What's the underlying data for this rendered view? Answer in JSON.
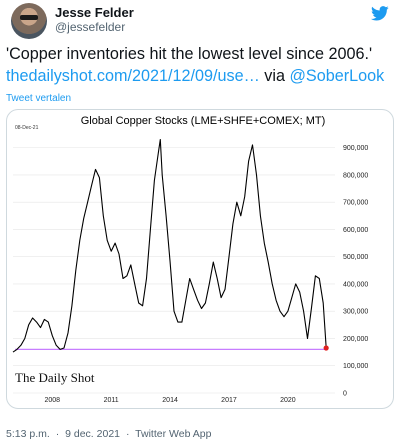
{
  "author": {
    "name": "Jesse Felder",
    "handle": "@jessefelder"
  },
  "tweet": {
    "text": "'Copper inventories hit the lowest level since 2006.'",
    "link": "thedailyshot.com/2021/12/09/use…",
    "via_word": "via",
    "mention": "@SoberLook",
    "translate_label": "Tweet vertalen"
  },
  "meta": {
    "time": "5:13 p.m.",
    "separator": "·",
    "date": "9 dec. 2021",
    "source": "Twitter Web App"
  },
  "icons": {
    "twitter": "twitter-bird-icon"
  },
  "colors": {
    "link": "#1d9bf0",
    "series": "#000000",
    "reference_line": "#c77dff",
    "end_marker": "#e02020"
  },
  "chart_data": {
    "type": "line",
    "title": "Global Copper Stocks (LME+SHFE+COMEX;   MT)",
    "date_stamp": "08-Dec-21",
    "watermark": "The Daily Shot",
    "x_ticks": [
      "2008",
      "2011",
      "2014",
      "2017",
      "2020"
    ],
    "y_ticks": [
      "0",
      "100,000",
      "200,000",
      "300,000",
      "400,000",
      "500,000",
      "600,000",
      "700,000",
      "800,000",
      "900,000"
    ],
    "xlim": [
      2006.0,
      2022.4
    ],
    "ylim": [
      0,
      950000
    ],
    "grid": "horizontal",
    "series": [
      {
        "x": [
          2006.0,
          2006.2,
          2006.4,
          2006.6,
          2006.8,
          2007.0,
          2007.2,
          2007.4,
          2007.6,
          2007.8,
          2008.0,
          2008.2,
          2008.4,
          2008.6,
          2008.8,
          2009.0,
          2009.2,
          2009.4,
          2009.6,
          2009.8,
          2010.0,
          2010.2,
          2010.4,
          2010.6,
          2010.8,
          2011.0,
          2011.2,
          2011.4,
          2011.6,
          2011.8,
          2012.0,
          2012.2,
          2012.4,
          2012.6,
          2012.8,
          2013.0,
          2013.2,
          2013.4,
          2013.5,
          2013.6,
          2013.8,
          2014.0,
          2014.2,
          2014.4,
          2014.6,
          2014.8,
          2015.0,
          2015.2,
          2015.4,
          2015.6,
          2015.8,
          2016.0,
          2016.2,
          2016.4,
          2016.6,
          2016.8,
          2017.0,
          2017.2,
          2017.4,
          2017.6,
          2017.8,
          2018.0,
          2018.2,
          2018.4,
          2018.6,
          2018.8,
          2019.0,
          2019.2,
          2019.4,
          2019.6,
          2019.8,
          2020.0,
          2020.2,
          2020.4,
          2020.6,
          2020.8,
          2021.0,
          2021.2,
          2021.4,
          2021.6,
          2021.8,
          2021.95
        ],
        "y": [
          150000,
          160000,
          175000,
          200000,
          250000,
          275000,
          260000,
          240000,
          270000,
          260000,
          210000,
          175000,
          160000,
          165000,
          220000,
          320000,
          450000,
          560000,
          640000,
          700000,
          760000,
          820000,
          790000,
          650000,
          560000,
          520000,
          550000,
          510000,
          420000,
          430000,
          470000,
          400000,
          330000,
          320000,
          420000,
          600000,
          780000,
          880000,
          930000,
          800000,
          650000,
          480000,
          300000,
          260000,
          260000,
          340000,
          420000,
          380000,
          340000,
          310000,
          330000,
          400000,
          480000,
          420000,
          350000,
          380000,
          500000,
          620000,
          700000,
          650000,
          720000,
          850000,
          910000,
          800000,
          650000,
          550000,
          480000,
          400000,
          340000,
          300000,
          280000,
          300000,
          350000,
          400000,
          370000,
          300000,
          200000,
          310000,
          430000,
          420000,
          330000,
          165000
        ]
      }
    ],
    "reference_value": 160000
  }
}
